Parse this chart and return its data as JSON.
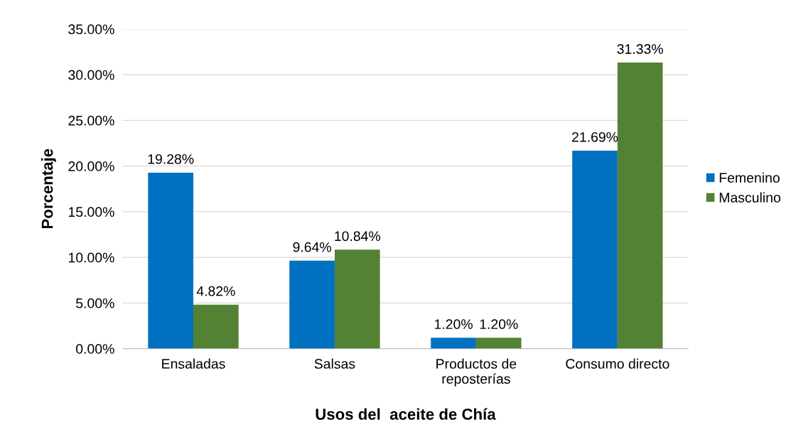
{
  "chart_data": {
    "type": "bar",
    "xlabel": "Usos del  aceite de Chía",
    "ylabel": "Porcentaje",
    "categories": [
      "Ensaladas",
      "Salsas",
      "Productos de\nreposterías",
      "Consumo directo"
    ],
    "series": [
      {
        "name": "Femenino",
        "color": "#0070c0",
        "values": [
          19.28,
          9.64,
          1.2,
          21.69
        ],
        "value_labels": [
          "19.28%",
          "9.64%",
          "1.20%",
          "21.69%"
        ]
      },
      {
        "name": "Masculino",
        "color": "#548235",
        "values": [
          4.82,
          10.84,
          1.2,
          31.33
        ],
        "value_labels": [
          "4.82%",
          "10.84%",
          "1.20%",
          "31.33%"
        ]
      }
    ],
    "ylim": [
      0,
      35
    ],
    "yticks": [
      {
        "value": 0,
        "label": "0.00%"
      },
      {
        "value": 5,
        "label": "5.00%"
      },
      {
        "value": 10,
        "label": "10.00%"
      },
      {
        "value": 15,
        "label": "15.00%"
      },
      {
        "value": 20,
        "label": "20.00%"
      },
      {
        "value": 25,
        "label": "25.00%"
      },
      {
        "value": 30,
        "label": "30.00%"
      },
      {
        "value": 35,
        "label": "35.00%"
      }
    ],
    "grid": "y",
    "legend": "right"
  }
}
